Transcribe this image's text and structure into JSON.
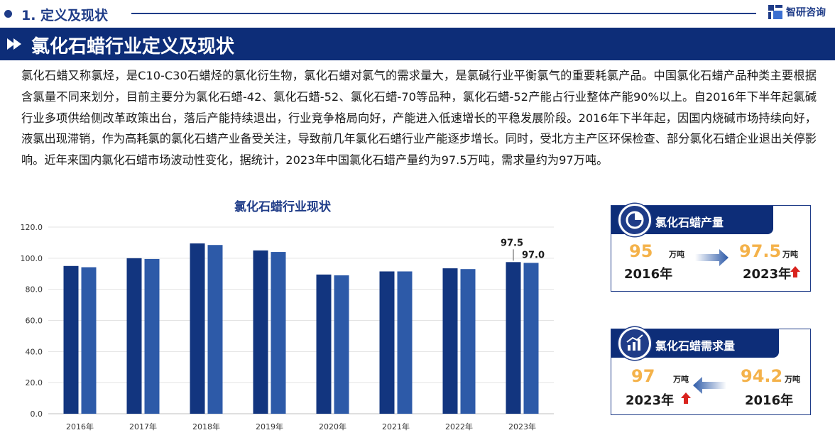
{
  "header": {
    "section_title": "1. 定义及现状",
    "brand": "智研咨询",
    "banner_title": "氯化石蜡行业定义及现状"
  },
  "intro": {
    "paragraph": "氯化石蜡又称氯烃，是C10-C30石蜡烃的氯化衍生物，氯化石蜡对氯气的需求量大，是氯碱行业平衡氯气的重要耗氯产品。中国氯化石蜡产品种类主要根据含氯量不同来划分，目前主要分为氯化石蜡-42、氯化石蜡-52、氯化石蜡-70等品种，氯化石蜡-52产能占行业整体产能90%以上。自2016年下半年起氯碱行业多项供给侧改革政策出台，落后产能持续退出，行业竞争格局向好，产能进入低速增长的平稳发展阶段。2016年下半年起，因国内烧碱市场持续向好，液氯出现滞销，作为高耗氯的氯化石蜡产业备受关注，导致前几年氯化石蜡行业产能逐步增长。同时，受北方主产区环保检查、部分氯化石蜡企业退出关停影响。近年来国内氯化石蜡市场波动性变化，据统计，2023年中国氯化石蜡产量约为97.5万吨，需求量约为97万吨。"
  },
  "chart_data": {
    "type": "bar",
    "title": "氯化石蜡行业现状",
    "categories": [
      "2016年",
      "2017年",
      "2018年",
      "2019年",
      "2020年",
      "2021年",
      "2022年",
      "2023年"
    ],
    "series": [
      {
        "values": [
          95,
          100,
          109.5,
          105,
          89.5,
          91.5,
          93.5,
          97.5
        ],
        "color": "#12357f"
      },
      {
        "values": [
          94.2,
          99.5,
          108.5,
          104,
          89,
          91.5,
          93,
          97
        ],
        "color": "#2d5aa8"
      }
    ],
    "ylim": [
      0,
      120
    ],
    "yticks": [
      "0.0",
      "20.0",
      "40.0",
      "60.0",
      "80.0",
      "100.0",
      "120.0"
    ],
    "data_labels": [
      "97.5",
      "97.0"
    ],
    "grid": true
  },
  "cards": {
    "production": {
      "label": "氯化石蜡产量",
      "from_value": "95",
      "from_unit": "万吨",
      "from_year": "2016年",
      "to_value": "97.5",
      "to_unit": "万吨",
      "to_year": "2023年"
    },
    "demand": {
      "label": "氯化石蜡需求量",
      "left_value": "97",
      "left_unit": "万吨",
      "left_year": "2023年",
      "right_value": "94.2",
      "right_unit": "万吨",
      "right_year": "2016年"
    }
  },
  "colors": {
    "brand_blue": "#1f3c88",
    "banner_blue": "#0d2d78",
    "value_orange": "#f4b24a",
    "up_red": "#d9231e"
  }
}
